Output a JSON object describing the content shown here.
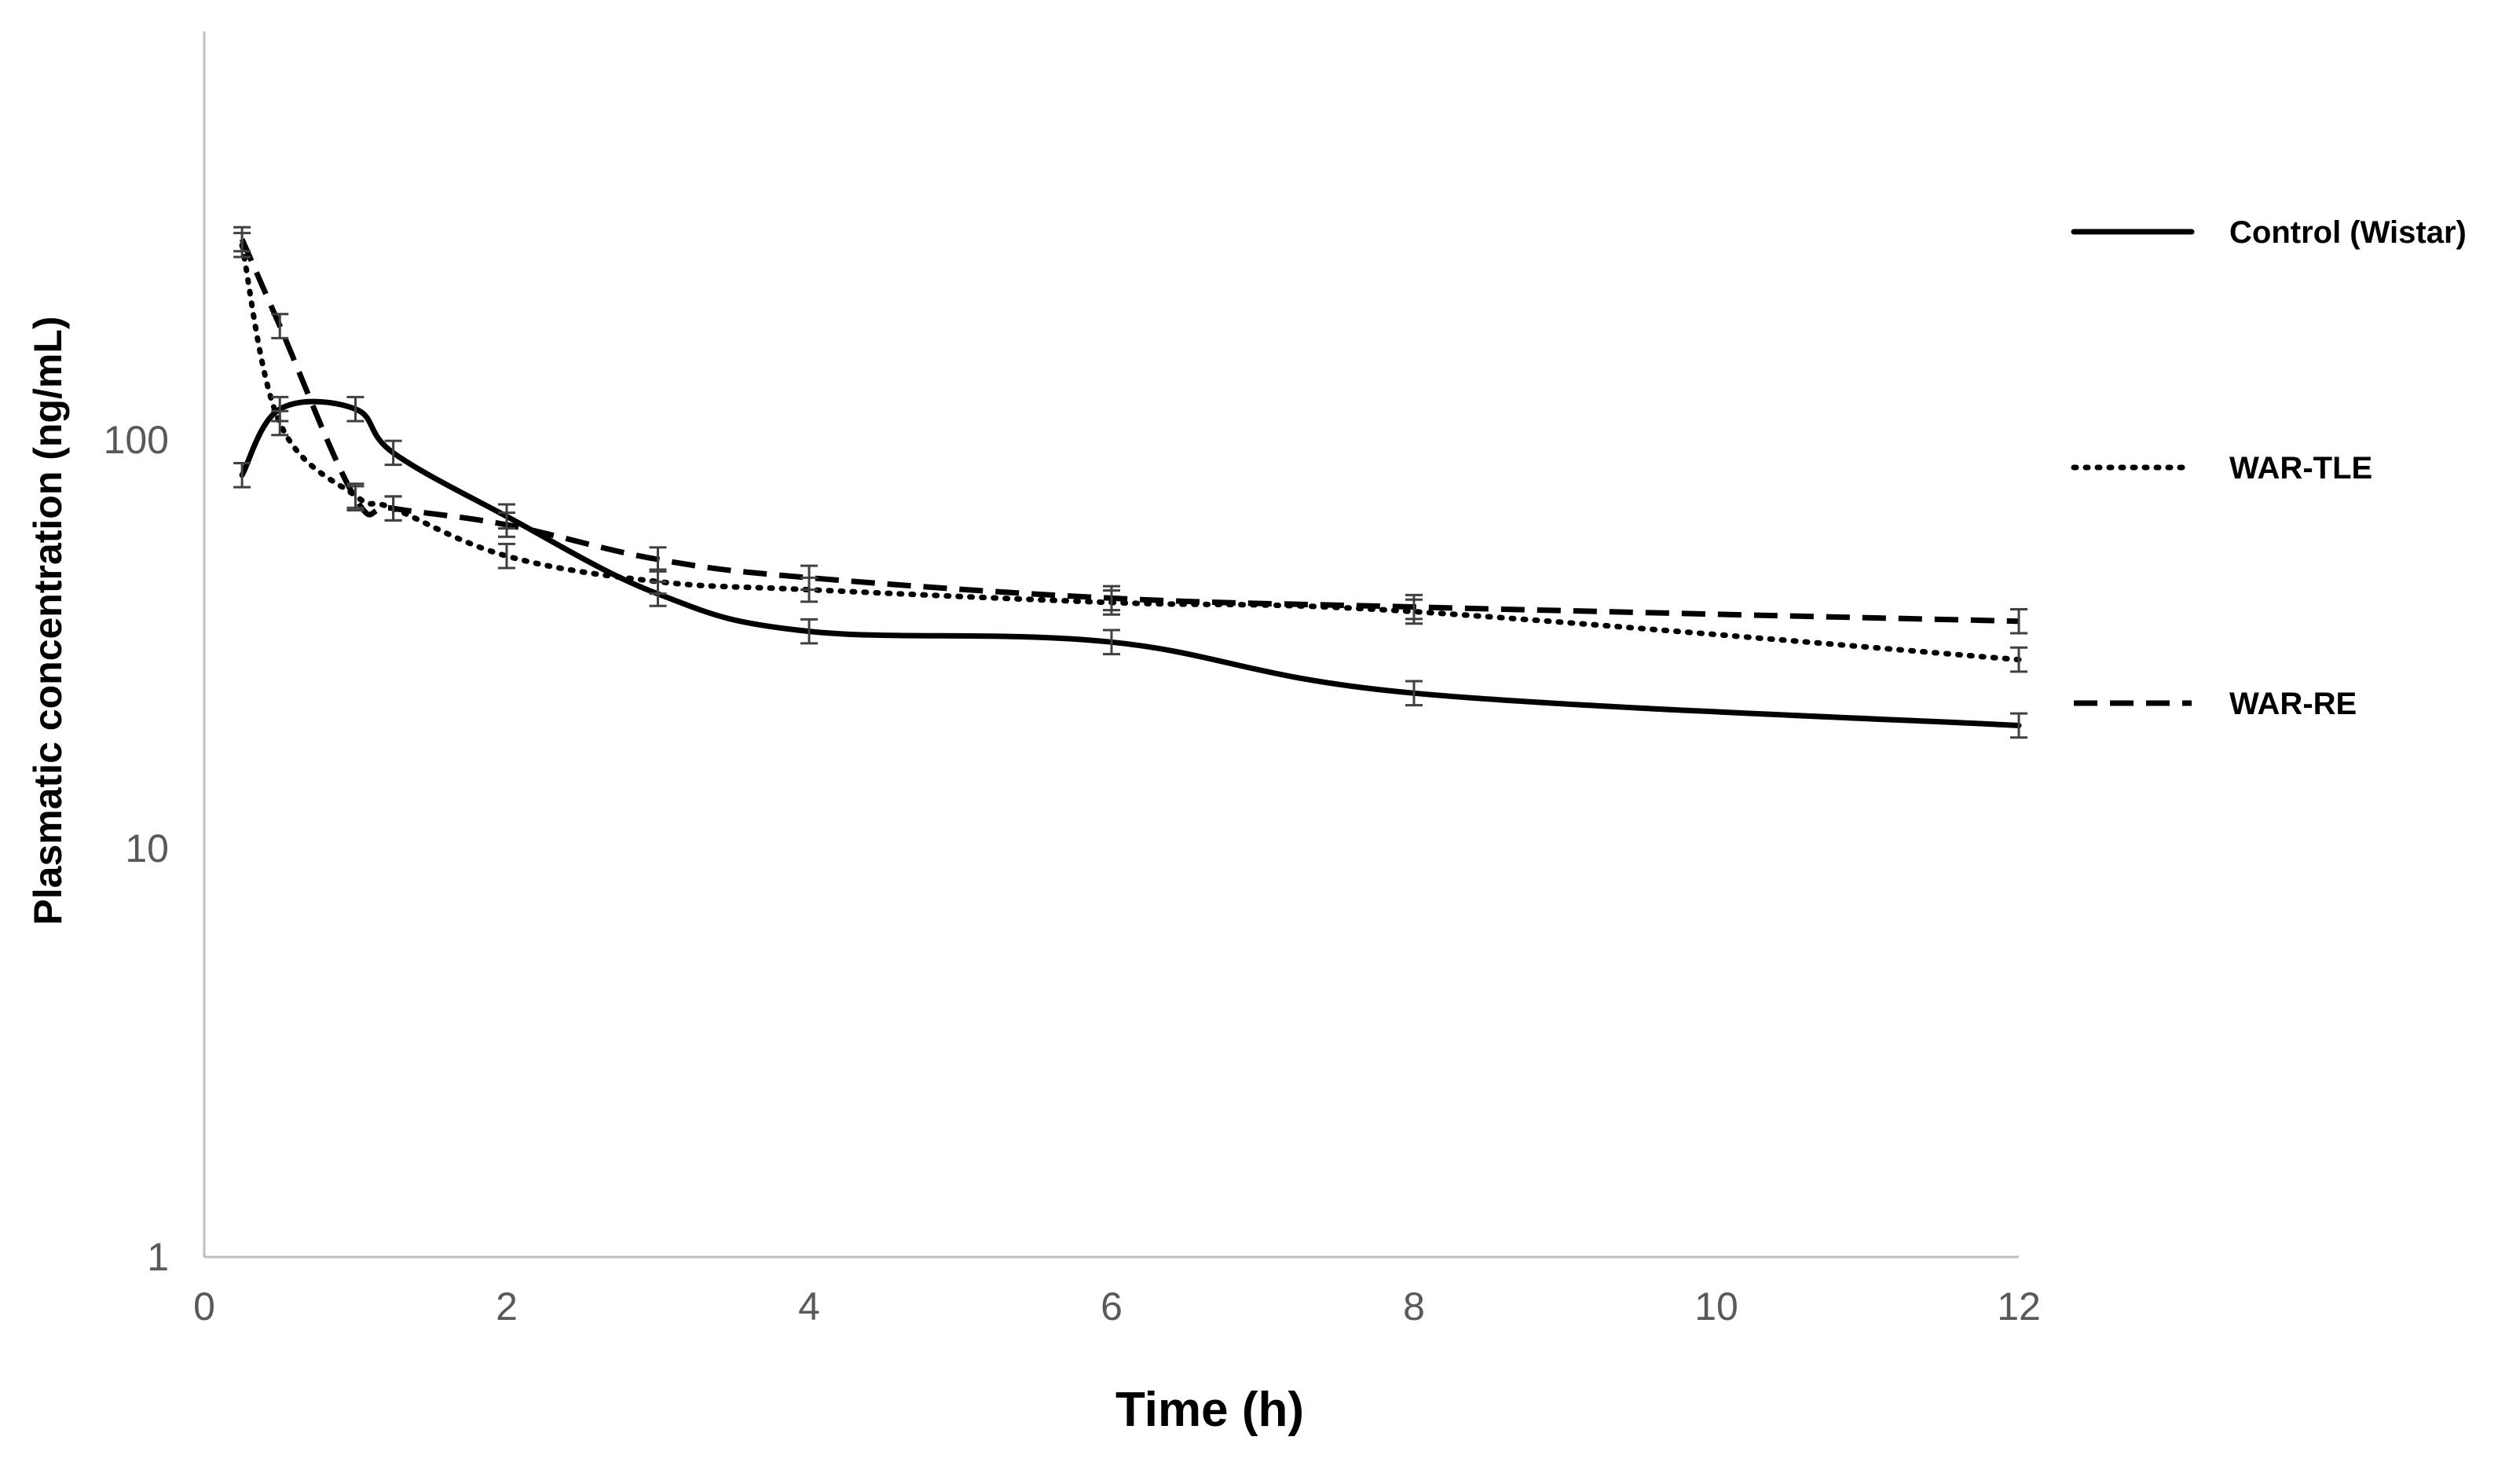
{
  "chart_data": {
    "type": "line",
    "title": "",
    "xlabel": "Time (h)",
    "ylabel": "Plasmatic concentration (ng/mL)",
    "xlim": [
      0,
      12
    ],
    "ylim": [
      1,
      1000
    ],
    "y_scale": "log",
    "x_ticks": [
      "0",
      "2",
      "4",
      "6",
      "8",
      "10",
      "12"
    ],
    "y_ticks": [
      "1",
      "10",
      "100"
    ],
    "grid": false,
    "legend_position": "right",
    "axis_color": "#bfbfbf",
    "line_color": "#000000",
    "error_bar_color": "#404040",
    "x": [
      0.25,
      0.5,
      1,
      1.25,
      2,
      3,
      4,
      6,
      8,
      12
    ],
    "series": [
      {
        "name": "Control (Wistar)",
        "style": "solid",
        "values": [
          82,
          119,
          119,
          93,
          65,
          42,
          34,
          32,
          24,
          20
        ]
      },
      {
        "name": "WAR-TLE",
        "style": "dotted",
        "values": [
          300,
          110,
          73,
          68,
          52,
          45,
          43,
          40,
          38,
          29
        ]
      },
      {
        "name": "WAR-RE",
        "style": "dashed",
        "values": [
          310,
          190,
          72,
          68,
          62,
          51,
          46,
          41,
          39,
          36
        ]
      }
    ]
  }
}
